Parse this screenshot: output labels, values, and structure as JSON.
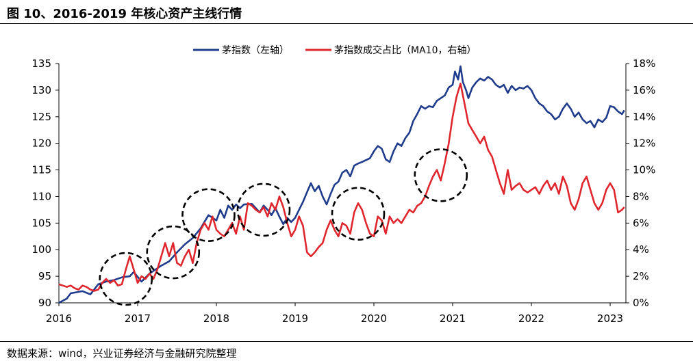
{
  "title": "图 10、2016-2019 年核心资产主线行情",
  "source": "数据来源：wind，兴业证券经济与金融研究院整理",
  "colors": {
    "left_series": "#1f3b8c",
    "right_series": "#e0262d",
    "circle": "#000000",
    "axis": "#000000"
  },
  "chart_data": {
    "type": "line",
    "xlabel": "",
    "ylabel": "",
    "xlim": [
      2016.0,
      2023.2
    ],
    "x_ticks": [
      "2016",
      "2017",
      "2018",
      "2019",
      "2020",
      "2021",
      "2022",
      "2023"
    ],
    "x_tick_values": [
      2016,
      2017,
      2018,
      2019,
      2020,
      2021,
      2022,
      2023
    ],
    "y_left": {
      "lim": [
        90,
        135
      ],
      "ticks": [
        "90",
        "95",
        "100",
        "105",
        "110",
        "115",
        "120",
        "125",
        "130",
        "135"
      ],
      "tick_values": [
        90,
        95,
        100,
        105,
        110,
        115,
        120,
        125,
        130,
        135
      ]
    },
    "y_right": {
      "lim": [
        0,
        18
      ],
      "ticks": [
        "0%",
        "2%",
        "4%",
        "6%",
        "8%",
        "10%",
        "12%",
        "14%",
        "16%",
        "18%"
      ],
      "tick_values": [
        0,
        2,
        4,
        6,
        8,
        10,
        12,
        14,
        16,
        18
      ]
    },
    "legend_position": "top-center",
    "series": [
      {
        "name": "茅指数（左轴）",
        "axis": "left",
        "points": [
          [
            2016.0,
            90.0
          ],
          [
            2016.1,
            90.8
          ],
          [
            2016.15,
            91.8
          ],
          [
            2016.3,
            92.2
          ],
          [
            2016.4,
            91.6
          ],
          [
            2016.5,
            93.5
          ],
          [
            2016.6,
            94.0
          ],
          [
            2016.7,
            94.3
          ],
          [
            2016.8,
            94.8
          ],
          [
            2016.9,
            95.0
          ],
          [
            2016.95,
            95.8
          ],
          [
            2017.05,
            94.0
          ],
          [
            2017.15,
            95.5
          ],
          [
            2017.3,
            97.0
          ],
          [
            2017.4,
            97.8
          ],
          [
            2017.5,
            99.5
          ],
          [
            2017.6,
            101.0
          ],
          [
            2017.7,
            102.2
          ],
          [
            2017.8,
            104.0
          ],
          [
            2017.9,
            106.5
          ],
          [
            2018.0,
            105.5
          ],
          [
            2018.05,
            107.5
          ],
          [
            2018.1,
            106.0
          ],
          [
            2018.15,
            108.3
          ],
          [
            2018.2,
            107.5
          ],
          [
            2018.25,
            108.5
          ],
          [
            2018.3,
            107.8
          ],
          [
            2018.35,
            108.5
          ],
          [
            2018.45,
            108.6
          ],
          [
            2018.55,
            107.0
          ],
          [
            2018.6,
            108.3
          ],
          [
            2018.65,
            107.5
          ],
          [
            2018.7,
            106.5
          ],
          [
            2018.75,
            107.8
          ],
          [
            2018.8,
            106.2
          ],
          [
            2018.85,
            104.8
          ],
          [
            2018.9,
            106.0
          ],
          [
            2018.95,
            105.2
          ],
          [
            2019.0,
            106.0
          ],
          [
            2019.05,
            107.5
          ],
          [
            2019.1,
            109.0
          ],
          [
            2019.15,
            110.8
          ],
          [
            2019.2,
            112.5
          ],
          [
            2019.25,
            111.0
          ],
          [
            2019.3,
            112.0
          ],
          [
            2019.35,
            110.0
          ],
          [
            2019.4,
            108.5
          ],
          [
            2019.45,
            110.5
          ],
          [
            2019.5,
            112.2
          ],
          [
            2019.55,
            112.8
          ],
          [
            2019.6,
            114.5
          ],
          [
            2019.65,
            115.0
          ],
          [
            2019.7,
            113.8
          ],
          [
            2019.75,
            115.8
          ],
          [
            2019.8,
            116.2
          ],
          [
            2019.85,
            116.5
          ],
          [
            2019.95,
            117.2
          ],
          [
            2020.0,
            118.5
          ],
          [
            2020.05,
            119.5
          ],
          [
            2020.1,
            119.0
          ],
          [
            2020.15,
            117.0
          ],
          [
            2020.2,
            116.5
          ],
          [
            2020.25,
            118.5
          ],
          [
            2020.3,
            120.0
          ],
          [
            2020.35,
            119.5
          ],
          [
            2020.4,
            121.0
          ],
          [
            2020.45,
            122.0
          ],
          [
            2020.5,
            124.2
          ],
          [
            2020.55,
            125.5
          ],
          [
            2020.6,
            127.0
          ],
          [
            2020.65,
            126.5
          ],
          [
            2020.7,
            127.0
          ],
          [
            2020.75,
            126.8
          ],
          [
            2020.8,
            128.0
          ],
          [
            2020.85,
            128.5
          ],
          [
            2020.9,
            129.0
          ],
          [
            2020.95,
            130.5
          ],
          [
            2021.0,
            131.0
          ],
          [
            2021.03,
            133.5
          ],
          [
            2021.07,
            132.0
          ],
          [
            2021.1,
            134.5
          ],
          [
            2021.13,
            131.5
          ],
          [
            2021.17,
            130.0
          ],
          [
            2021.2,
            128.5
          ],
          [
            2021.25,
            130.5
          ],
          [
            2021.3,
            131.5
          ],
          [
            2021.35,
            132.2
          ],
          [
            2021.4,
            131.8
          ],
          [
            2021.45,
            132.5
          ],
          [
            2021.5,
            132.0
          ],
          [
            2021.55,
            131.0
          ],
          [
            2021.6,
            130.5
          ],
          [
            2021.65,
            131.0
          ],
          [
            2021.7,
            129.5
          ],
          [
            2021.75,
            130.8
          ],
          [
            2021.8,
            130.0
          ],
          [
            2021.85,
            130.5
          ],
          [
            2021.9,
            130.3
          ],
          [
            2021.95,
            130.8
          ],
          [
            2022.0,
            130.0
          ],
          [
            2022.05,
            128.5
          ],
          [
            2022.1,
            127.5
          ],
          [
            2022.15,
            127.0
          ],
          [
            2022.2,
            126.0
          ],
          [
            2022.25,
            125.5
          ],
          [
            2022.3,
            124.5
          ],
          [
            2022.35,
            125.0
          ],
          [
            2022.4,
            126.5
          ],
          [
            2022.45,
            127.5
          ],
          [
            2022.5,
            126.5
          ],
          [
            2022.55,
            125.0
          ],
          [
            2022.6,
            125.8
          ],
          [
            2022.65,
            124.5
          ],
          [
            2022.7,
            123.8
          ],
          [
            2022.75,
            124.2
          ],
          [
            2022.8,
            123.0
          ],
          [
            2022.85,
            124.5
          ],
          [
            2022.9,
            124.0
          ],
          [
            2022.95,
            124.8
          ],
          [
            2023.0,
            127.0
          ],
          [
            2023.05,
            126.8
          ],
          [
            2023.1,
            126.0
          ],
          [
            2023.15,
            125.5
          ],
          [
            2023.18,
            126.2
          ]
        ]
      },
      {
        "name": "茅指数成交占比（MA10，右轴）",
        "axis": "right",
        "points": [
          [
            2016.0,
            1.4
          ],
          [
            2016.05,
            1.3
          ],
          [
            2016.1,
            1.2
          ],
          [
            2016.15,
            1.3
          ],
          [
            2016.2,
            1.1
          ],
          [
            2016.25,
            1.0
          ],
          [
            2016.3,
            1.3
          ],
          [
            2016.35,
            1.2
          ],
          [
            2016.4,
            1.0
          ],
          [
            2016.45,
            0.9
          ],
          [
            2016.5,
            1.0
          ],
          [
            2016.55,
            1.5
          ],
          [
            2016.6,
            1.8
          ],
          [
            2016.65,
            1.5
          ],
          [
            2016.7,
            1.7
          ],
          [
            2016.75,
            1.3
          ],
          [
            2016.8,
            1.4
          ],
          [
            2016.85,
            2.5
          ],
          [
            2016.9,
            3.5
          ],
          [
            2016.95,
            2.5
          ],
          [
            2017.0,
            1.5
          ],
          [
            2017.05,
            2.0
          ],
          [
            2017.1,
            1.8
          ],
          [
            2017.15,
            2.2
          ],
          [
            2017.2,
            1.8
          ],
          [
            2017.25,
            2.5
          ],
          [
            2017.3,
            3.5
          ],
          [
            2017.35,
            4.5
          ],
          [
            2017.4,
            3.5
          ],
          [
            2017.45,
            4.5
          ],
          [
            2017.5,
            3.0
          ],
          [
            2017.55,
            2.8
          ],
          [
            2017.6,
            3.5
          ],
          [
            2017.65,
            4.0
          ],
          [
            2017.7,
            3.0
          ],
          [
            2017.75,
            4.5
          ],
          [
            2017.8,
            5.5
          ],
          [
            2017.85,
            6.0
          ],
          [
            2017.9,
            5.5
          ],
          [
            2017.95,
            6.5
          ],
          [
            2018.0,
            5.5
          ],
          [
            2018.05,
            5.2
          ],
          [
            2018.1,
            5.0
          ],
          [
            2018.15,
            5.5
          ],
          [
            2018.2,
            6.0
          ],
          [
            2018.25,
            5.2
          ],
          [
            2018.3,
            6.5
          ],
          [
            2018.35,
            5.5
          ],
          [
            2018.4,
            7.5
          ],
          [
            2018.45,
            7.3
          ],
          [
            2018.5,
            7.0
          ],
          [
            2018.55,
            6.8
          ],
          [
            2018.6,
            7.2
          ],
          [
            2018.65,
            6.5
          ],
          [
            2018.7,
            7.5
          ],
          [
            2018.75,
            7.0
          ],
          [
            2018.8,
            8.0
          ],
          [
            2018.85,
            7.2
          ],
          [
            2018.9,
            6.0
          ],
          [
            2018.95,
            5.0
          ],
          [
            2019.0,
            5.5
          ],
          [
            2019.05,
            6.5
          ],
          [
            2019.1,
            5.8
          ],
          [
            2019.15,
            3.8
          ],
          [
            2019.2,
            3.5
          ],
          [
            2019.25,
            3.8
          ],
          [
            2019.3,
            4.2
          ],
          [
            2019.35,
            4.5
          ],
          [
            2019.4,
            5.5
          ],
          [
            2019.45,
            6.2
          ],
          [
            2019.5,
            5.5
          ],
          [
            2019.55,
            5.0
          ],
          [
            2019.6,
            6.0
          ],
          [
            2019.65,
            5.8
          ],
          [
            2019.7,
            5.2
          ],
          [
            2019.75,
            6.8
          ],
          [
            2019.8,
            7.5
          ],
          [
            2019.85,
            7.0
          ],
          [
            2019.9,
            6.0
          ],
          [
            2019.95,
            5.2
          ],
          [
            2020.0,
            5.0
          ],
          [
            2020.05,
            6.5
          ],
          [
            2020.1,
            6.2
          ],
          [
            2020.15,
            5.2
          ],
          [
            2020.2,
            6.5
          ],
          [
            2020.25,
            6.0
          ],
          [
            2020.3,
            6.3
          ],
          [
            2020.35,
            6.0
          ],
          [
            2020.4,
            6.5
          ],
          [
            2020.45,
            7.0
          ],
          [
            2020.5,
            6.8
          ],
          [
            2020.55,
            7.3
          ],
          [
            2020.6,
            7.5
          ],
          [
            2020.65,
            8.0
          ],
          [
            2020.7,
            8.8
          ],
          [
            2020.75,
            9.5
          ],
          [
            2020.8,
            10.0
          ],
          [
            2020.85,
            9.2
          ],
          [
            2020.9,
            10.5
          ],
          [
            2020.95,
            12.0
          ],
          [
            2021.0,
            14.0
          ],
          [
            2021.05,
            15.5
          ],
          [
            2021.1,
            16.5
          ],
          [
            2021.15,
            15.0
          ],
          [
            2021.2,
            13.5
          ],
          [
            2021.25,
            13.0
          ],
          [
            2021.3,
            12.5
          ],
          [
            2021.35,
            12.0
          ],
          [
            2021.4,
            12.5
          ],
          [
            2021.45,
            11.5
          ],
          [
            2021.5,
            11.0
          ],
          [
            2021.55,
            10.0
          ],
          [
            2021.6,
            9.0
          ],
          [
            2021.65,
            8.2
          ],
          [
            2021.7,
            10.0
          ],
          [
            2021.75,
            8.5
          ],
          [
            2021.8,
            8.8
          ],
          [
            2021.85,
            9.0
          ],
          [
            2021.9,
            8.5
          ],
          [
            2021.95,
            8.3
          ],
          [
            2022.0,
            8.5
          ],
          [
            2022.05,
            8.7
          ],
          [
            2022.1,
            8.2
          ],
          [
            2022.15,
            8.8
          ],
          [
            2022.2,
            9.2
          ],
          [
            2022.25,
            8.5
          ],
          [
            2022.3,
            9.0
          ],
          [
            2022.35,
            8.2
          ],
          [
            2022.4,
            9.5
          ],
          [
            2022.45,
            8.8
          ],
          [
            2022.5,
            7.5
          ],
          [
            2022.55,
            7.0
          ],
          [
            2022.6,
            7.8
          ],
          [
            2022.65,
            9.0
          ],
          [
            2022.7,
            9.5
          ],
          [
            2022.75,
            8.5
          ],
          [
            2022.8,
            7.5
          ],
          [
            2022.85,
            7.0
          ],
          [
            2022.9,
            7.5
          ],
          [
            2022.95,
            8.5
          ],
          [
            2023.0,
            9.0
          ],
          [
            2023.05,
            8.5
          ],
          [
            2023.1,
            6.8
          ],
          [
            2023.15,
            7.0
          ],
          [
            2023.18,
            7.2
          ]
        ]
      }
    ],
    "annotations": [
      {
        "type": "dashed-circle",
        "center": [
          2016.85,
          1.8
        ],
        "axis": "right"
      },
      {
        "type": "dashed-circle",
        "center": [
          2017.45,
          3.8
        ],
        "axis": "right"
      },
      {
        "type": "dashed-circle",
        "center": [
          2017.9,
          6.6
        ],
        "axis": "right"
      },
      {
        "type": "dashed-circle",
        "center": [
          2018.6,
          7.0
        ],
        "axis": "right"
      },
      {
        "type": "dashed-circle",
        "center": [
          2019.8,
          6.7
        ],
        "axis": "right"
      },
      {
        "type": "dashed-circle",
        "center": [
          2020.85,
          9.6
        ],
        "axis": "right"
      }
    ]
  }
}
